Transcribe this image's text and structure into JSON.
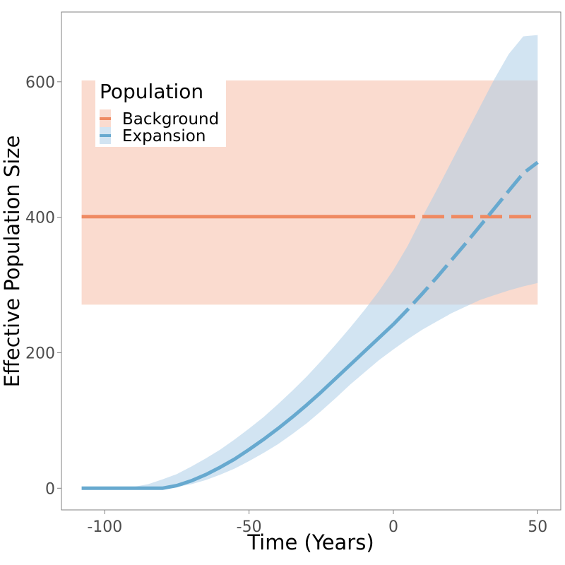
{
  "chart_data": {
    "type": "line",
    "xlabel": "Time (Years)",
    "ylabel": "Effective Population Size",
    "xlim": [
      -115,
      58
    ],
    "ylim": [
      -32,
      703
    ],
    "x_ticks": [
      -100,
      -50,
      0,
      50
    ],
    "x_tick_labels": [
      "-100",
      "-50",
      "0",
      "50"
    ],
    "y_ticks": [
      0,
      200,
      400,
      600
    ],
    "y_tick_labels": [
      "0",
      "200",
      "400",
      "600"
    ],
    "grid": false,
    "legend": {
      "title": "Population",
      "position": "top-left",
      "entries": [
        "Background",
        "Expansion"
      ]
    },
    "series": [
      {
        "name": "Background",
        "color": "#ef8a62",
        "band_color": "#f4a98c",
        "solid_until": 0,
        "x": [
          -108,
          -100,
          -80,
          -60,
          -40,
          -20,
          0,
          20,
          40,
          50
        ],
        "y": [
          401,
          401,
          401,
          401,
          401,
          401,
          401,
          401,
          401,
          401
        ],
        "lower": [
          271,
          271,
          271,
          271,
          271,
          271,
          271,
          271,
          271,
          271
        ],
        "upper": [
          602,
          602,
          602,
          602,
          602,
          602,
          602,
          602,
          602,
          602
        ]
      },
      {
        "name": "Expansion",
        "color": "#67a9cf",
        "band_color": "#a9cce6",
        "solid_until": 0,
        "x": [
          -108,
          -100,
          -95,
          -90,
          -85,
          -80,
          -75,
          -70,
          -65,
          -60,
          -55,
          -50,
          -45,
          -40,
          -35,
          -30,
          -25,
          -20,
          -15,
          -10,
          -5,
          0,
          5,
          10,
          15,
          20,
          25,
          30,
          35,
          40,
          45,
          50
        ],
        "y": [
          0,
          0,
          0,
          0,
          0,
          0,
          4,
          11,
          20,
          31,
          43,
          57,
          72,
          88,
          105,
          123,
          142,
          162,
          182,
          202,
          222,
          242,
          264,
          287,
          311,
          336,
          361,
          387,
          413,
          439,
          465,
          481
        ],
        "lower": [
          0,
          0,
          0,
          0,
          0,
          0,
          2,
          6,
          12,
          20,
          29,
          40,
          52,
          65,
          80,
          96,
          114,
          133,
          153,
          171,
          189,
          205,
          220,
          234,
          246,
          258,
          268,
          278,
          285,
          292,
          298,
          303
        ],
        "upper": [
          0,
          0,
          0,
          2,
          6,
          13,
          21,
          32,
          44,
          57,
          72,
          88,
          105,
          124,
          144,
          165,
          188,
          212,
          237,
          263,
          291,
          322,
          358,
          400,
          440,
          481,
          522,
          563,
          604,
          641,
          667,
          669
        ]
      }
    ]
  }
}
